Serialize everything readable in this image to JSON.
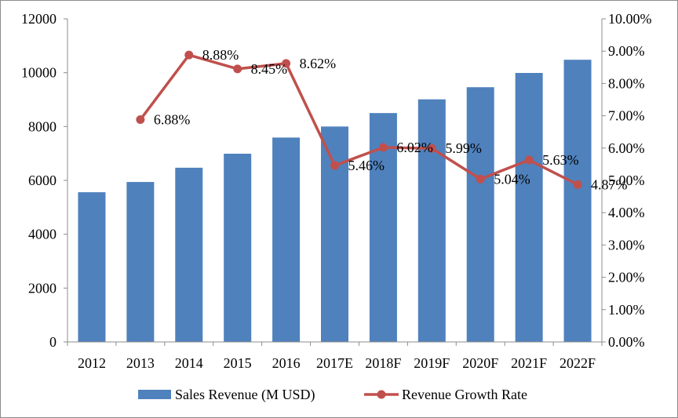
{
  "chart_data": {
    "type": "bar",
    "categories": [
      "2012",
      "2013",
      "2014",
      "2015",
      "2016",
      "2017E",
      "2018F",
      "2019F",
      "2020F",
      "2021F",
      "2022F"
    ],
    "series": [
      {
        "name": "Sales Revenue (M USD)",
        "type": "bar",
        "axis": "left",
        "values": [
          5560,
          5940,
          6470,
          6990,
          7590,
          8000,
          8500,
          9010,
          9460,
          9990,
          10480
        ]
      },
      {
        "name": "Revenue Growth Rate",
        "type": "line",
        "axis": "right",
        "values": [
          null,
          6.88,
          8.88,
          8.45,
          8.62,
          5.46,
          6.02,
          5.99,
          5.04,
          5.63,
          4.87
        ],
        "labels": [
          null,
          "6.88%",
          "8.88%",
          "8.45%",
          "8.62%",
          "5.46%",
          "6.02%",
          "5.99%",
          "5.04%",
          "5.63%",
          "4.87%"
        ]
      }
    ],
    "y_left": {
      "min": 0,
      "max": 12000,
      "ticks": [
        "0",
        "2000",
        "4000",
        "6000",
        "8000",
        "10000",
        "12000"
      ]
    },
    "y_right": {
      "min": 0,
      "max": 10,
      "ticks": [
        "0.00%",
        "1.00%",
        "2.00%",
        "3.00%",
        "4.00%",
        "5.00%",
        "6.00%",
        "7.00%",
        "8.00%",
        "9.00%",
        "10.00%"
      ]
    },
    "grid": false,
    "legend": "bottom",
    "colors": {
      "bar": "#4f81bd",
      "line": "#c0504d"
    }
  }
}
